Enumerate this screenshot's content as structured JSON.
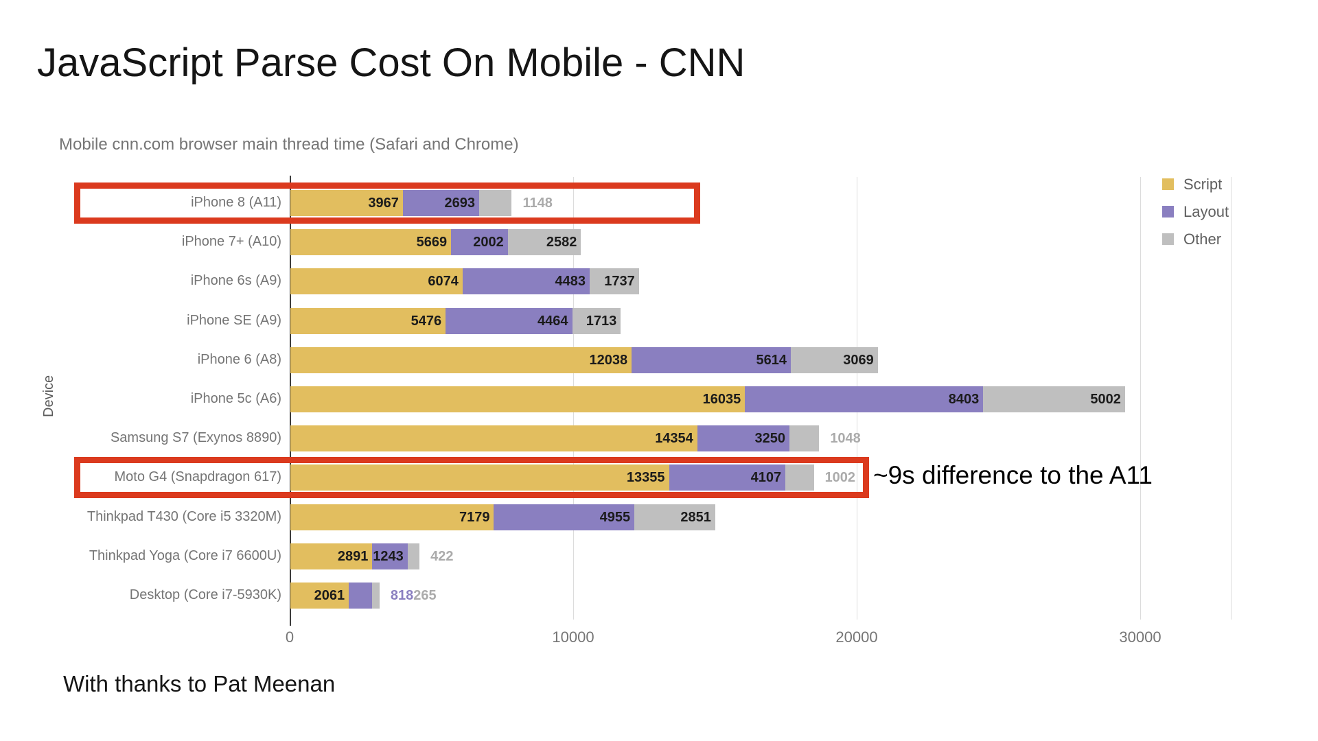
{
  "slide": {
    "title": "JavaScript Parse Cost On Mobile - CNN",
    "footer": "With thanks to Pat Meenan",
    "annotation": "~9s difference to the A11"
  },
  "chart": {
    "subtitle": "Mobile cnn.com browser main thread time (Safari and Chrome)",
    "y_axis_title": "Device",
    "colors": {
      "script": "#e2be5f",
      "layout": "#8a7fc0",
      "other": "#bfbfbf",
      "outside_label_layout": "#8a7fc0",
      "outside_label_other": "#ababab",
      "highlight": "#db3a1e",
      "grid": "#dcdcdc",
      "axis": "#3c3c3c"
    },
    "legend": [
      {
        "label": "Script",
        "color": "#e2be5f"
      },
      {
        "label": "Layout",
        "color": "#8a7fc0"
      },
      {
        "label": "Other",
        "color": "#bfbfbf"
      }
    ]
  },
  "chart_data": {
    "type": "bar",
    "orientation": "horizontal",
    "stacked": true,
    "title": "Mobile cnn.com browser main thread time (Safari and Chrome)",
    "xlabel": "",
    "ylabel": "Device",
    "xlim": [
      0,
      33200
    ],
    "x_ticks": [
      0,
      10000,
      20000,
      30000
    ],
    "grid": "vertical",
    "legend_position": "top-right",
    "categories": [
      "iPhone 8 (A11)",
      "iPhone 7+ (A10)",
      "iPhone 6s (A9)",
      "iPhone SE (A9)",
      "iPhone 6 (A8)",
      "iPhone 5c (A6)",
      "Samsung S7 (Exynos 8890)",
      "Moto G4 (Snapdragon 617)",
      "Thinkpad T430 (Core i5 3320M)",
      "Thinkpad Yoga (Core i7 6600U)",
      "Desktop (Core i7-5930K)"
    ],
    "series": [
      {
        "name": "Script",
        "color": "#e2be5f",
        "values": [
          3967,
          5669,
          6074,
          5476,
          12038,
          16035,
          14354,
          13355,
          7179,
          2891,
          2061
        ]
      },
      {
        "name": "Layout",
        "color": "#8a7fc0",
        "values": [
          2693,
          2002,
          4483,
          4464,
          5614,
          8403,
          3250,
          4107,
          4955,
          1243,
          818
        ]
      },
      {
        "name": "Other",
        "color": "#bfbfbf",
        "values": [
          1148,
          2582,
          1737,
          1713,
          3069,
          5002,
          1048,
          1002,
          2851,
          422,
          265
        ]
      }
    ],
    "outside_labels": [
      [
        "Other"
      ],
      [],
      [],
      [],
      [],
      [],
      [
        "Other"
      ],
      [
        "Other"
      ],
      [],
      [
        "Other"
      ],
      [
        "Layout",
        "Other"
      ]
    ]
  },
  "highlights": [
    {
      "category": "iPhone 8 (A11)"
    },
    {
      "category": "Moto G4 (Snapdragon 617)"
    }
  ]
}
